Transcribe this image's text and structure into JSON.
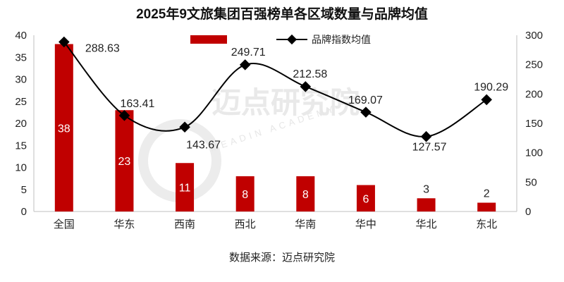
{
  "chart_data": {
    "type": "bar",
    "title": "2025年9文旅集团百强榜单各区域数量与品牌均值",
    "categories": [
      "全国",
      "华东",
      "西南",
      "西北",
      "华南",
      "华中",
      "华北",
      "东北"
    ],
    "series": [
      {
        "type": "bar",
        "axis": "left",
        "values": [
          38,
          23,
          11,
          8,
          8,
          6,
          3,
          2
        ]
      },
      {
        "type": "line",
        "axis": "right",
        "name": "品牌指数均值",
        "values": [
          288.63,
          163.41,
          143.67,
          249.71,
          212.58,
          169.07,
          127.57,
          190.29
        ]
      }
    ],
    "y_left": {
      "min": 0,
      "max": 40,
      "step": 5
    },
    "y_right": {
      "min": 0,
      "max": 300,
      "step": 50
    },
    "legend_position": "top",
    "grid": false,
    "bar_label_colors": [
      "#ffffff",
      "#ffffff",
      "#ffffff",
      "#ffffff",
      "#ffffff",
      "#ffffff",
      "#222222",
      "#222222"
    ]
  },
  "source": "数据来源：迈点研究院",
  "watermark": {
    "name": "迈点研究院",
    "sub": "MEADIN ACADEMY"
  },
  "colors": {
    "bar": "#c00000",
    "line": "#000000",
    "marker": "#000000"
  }
}
